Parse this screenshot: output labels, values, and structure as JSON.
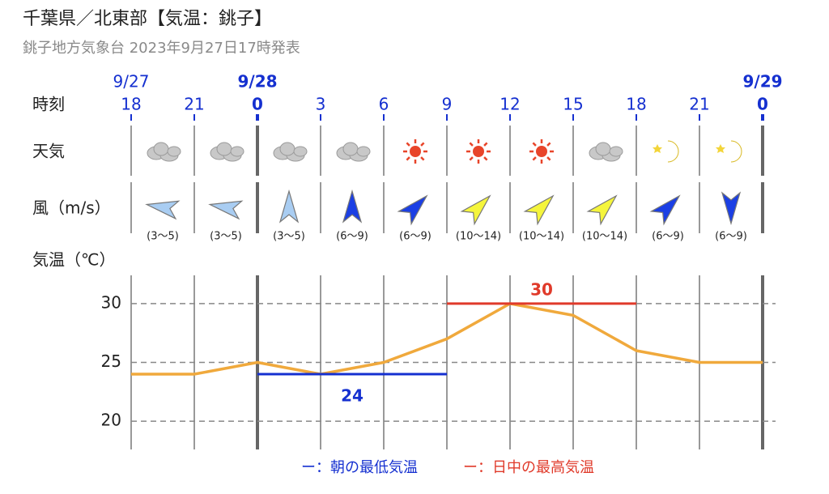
{
  "header": {
    "title": "千葉県／北東部【気温：銚子】",
    "subtitle": "銚子地方気象台 2023年9月27日17時発表"
  },
  "rows": {
    "time": "時刻",
    "weather": "天気",
    "wind": "風（m/s）",
    "temp": "気温（℃）"
  },
  "time": {
    "dates": [
      "9/27",
      null,
      "9/28",
      null,
      null,
      null,
      null,
      null,
      null,
      null,
      "9/29"
    ],
    "hours": [
      18,
      21,
      0,
      3,
      6,
      9,
      12,
      15,
      18,
      21,
      0
    ]
  },
  "weather_icons": [
    "cloud",
    "cloud",
    "cloud",
    "cloud",
    "sun",
    "sun",
    "sun",
    "cloud",
    "moon",
    "moon"
  ],
  "wind": {
    "direction": [
      280,
      280,
      0,
      0,
      45,
      45,
      45,
      45,
      45,
      180
    ],
    "colors": [
      "#a9cdf2",
      "#a9cdf2",
      "#a9cdf2",
      "#1b3fe4",
      "#1b3fe4",
      "#f5f53c",
      "#f5f53c",
      "#f5f53c",
      "#1b3fe4",
      "#1b3fe4"
    ],
    "labels": [
      "(3～5)",
      "(3～5)",
      "(3～5)",
      "(6～9)",
      "(6～9)",
      "(10～14)",
      "(10～14)",
      "(10～14)",
      "(6～9)",
      "(6～9)"
    ]
  },
  "chart_data": {
    "type": "line",
    "values": [
      24,
      24,
      25,
      24,
      25,
      27,
      30,
      29,
      26,
      25,
      25
    ],
    "color": "#f0a93c",
    "ylim": [
      17.6,
      32.4
    ],
    "yticks": [
      20,
      25,
      30
    ],
    "grid": true,
    "min": {
      "name": "朝の最低気温",
      "value": 24,
      "color": "#1530d0",
      "span": [
        2,
        5
      ]
    },
    "max": {
      "name": "日中の最高気温",
      "value": 30,
      "color": "#e03a2a",
      "span": [
        5,
        8
      ]
    },
    "legend_marker": "ー："
  }
}
